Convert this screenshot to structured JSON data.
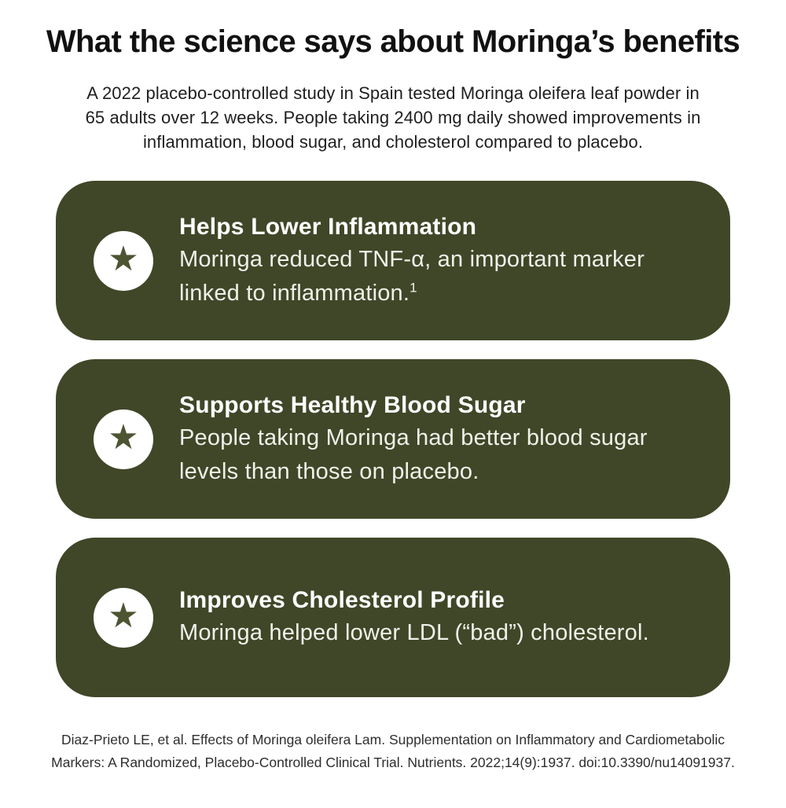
{
  "header": {
    "title": "What the science says about Moringa’s benefits",
    "subtitle_lines": [
      "A 2022 placebo-controlled study in Spain tested Moringa oleifera leaf powder in",
      "65 adults over 12 weeks. People taking 2400 mg daily showed improvements in",
      "inflammation, blood sugar, and cholesterol compared to placebo."
    ]
  },
  "icons": {
    "star_glyph": "★"
  },
  "cards": [
    {
      "title": "Helps Lower Inflammation",
      "body_line1": "Moringa reduced TNF-α, an important marker",
      "body_line2": "linked to inflammation.",
      "footnote_ref": "1"
    },
    {
      "title": "Supports Healthy Blood Sugar",
      "body_line1": "People taking Moringa had better blood sugar",
      "body_line2": "levels than those on placebo.",
      "footnote_ref": ""
    },
    {
      "title": "Improves Cholesterol Profile",
      "body_line1": "Moringa helped lower LDL (“bad”) cholesterol.",
      "body_line2": "",
      "footnote_ref": ""
    }
  ],
  "footer": {
    "citation_lines": [
      "Diaz-Prieto LE, et al. Effects of Moringa oleifera Lam. Supplementation on Inflammatory and Cardiometabolic",
      "Markers: A Randomized, Placebo-Controlled Clinical Trial. Nutrients. 2022;14(9):1937. doi:10.3390/nu14091937."
    ]
  },
  "colors": {
    "card_background": "#404728",
    "star": "#4c5432",
    "card_title_text": "#ffffff",
    "card_body_text": "#f0f1ea",
    "heading_text": "#111111",
    "subtitle_text": "#1f1f1f",
    "footer_text": "#2e2e2e",
    "page_background": "#ffffff"
  }
}
